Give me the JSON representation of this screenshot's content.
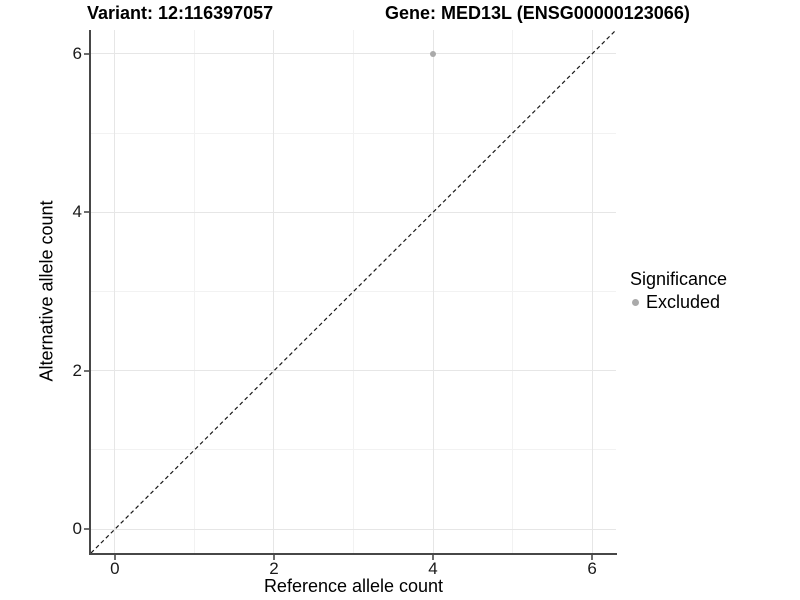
{
  "chart_data": {
    "type": "scatter",
    "titles": {
      "variant": "Variant: 12:116397057",
      "gene": "Gene: MED13L (ENSG00000123066)"
    },
    "xlabel": "Reference allele count",
    "ylabel": "Alternative allele count",
    "xlim": [
      -0.3,
      6.3
    ],
    "ylim": [
      -0.3,
      6.3
    ],
    "x_ticks": [
      0,
      2,
      4,
      6
    ],
    "y_ticks": [
      0,
      2,
      4,
      6
    ],
    "x_minor_ticks": [
      1,
      3,
      5
    ],
    "y_minor_ticks": [
      1,
      3,
      5
    ],
    "grid": "major+minor",
    "series": [
      {
        "name": "Excluded",
        "color": "#aaaaaa",
        "points": [
          {
            "x": 4,
            "y": 6
          }
        ]
      }
    ],
    "reference_line": {
      "equation": "y = x",
      "style": "dashed",
      "color": "#1a1a1a"
    },
    "legend": {
      "title": "Significance",
      "position": "right",
      "entries": [
        {
          "label": "Excluded",
          "color": "#aaaaaa",
          "marker": "circle"
        }
      ]
    },
    "colors": {
      "background": "#ffffff",
      "grid_major": "#e6e6e6",
      "grid_minor": "#f2f2f2",
      "axis_line": "#474747",
      "text": "#000000"
    }
  }
}
